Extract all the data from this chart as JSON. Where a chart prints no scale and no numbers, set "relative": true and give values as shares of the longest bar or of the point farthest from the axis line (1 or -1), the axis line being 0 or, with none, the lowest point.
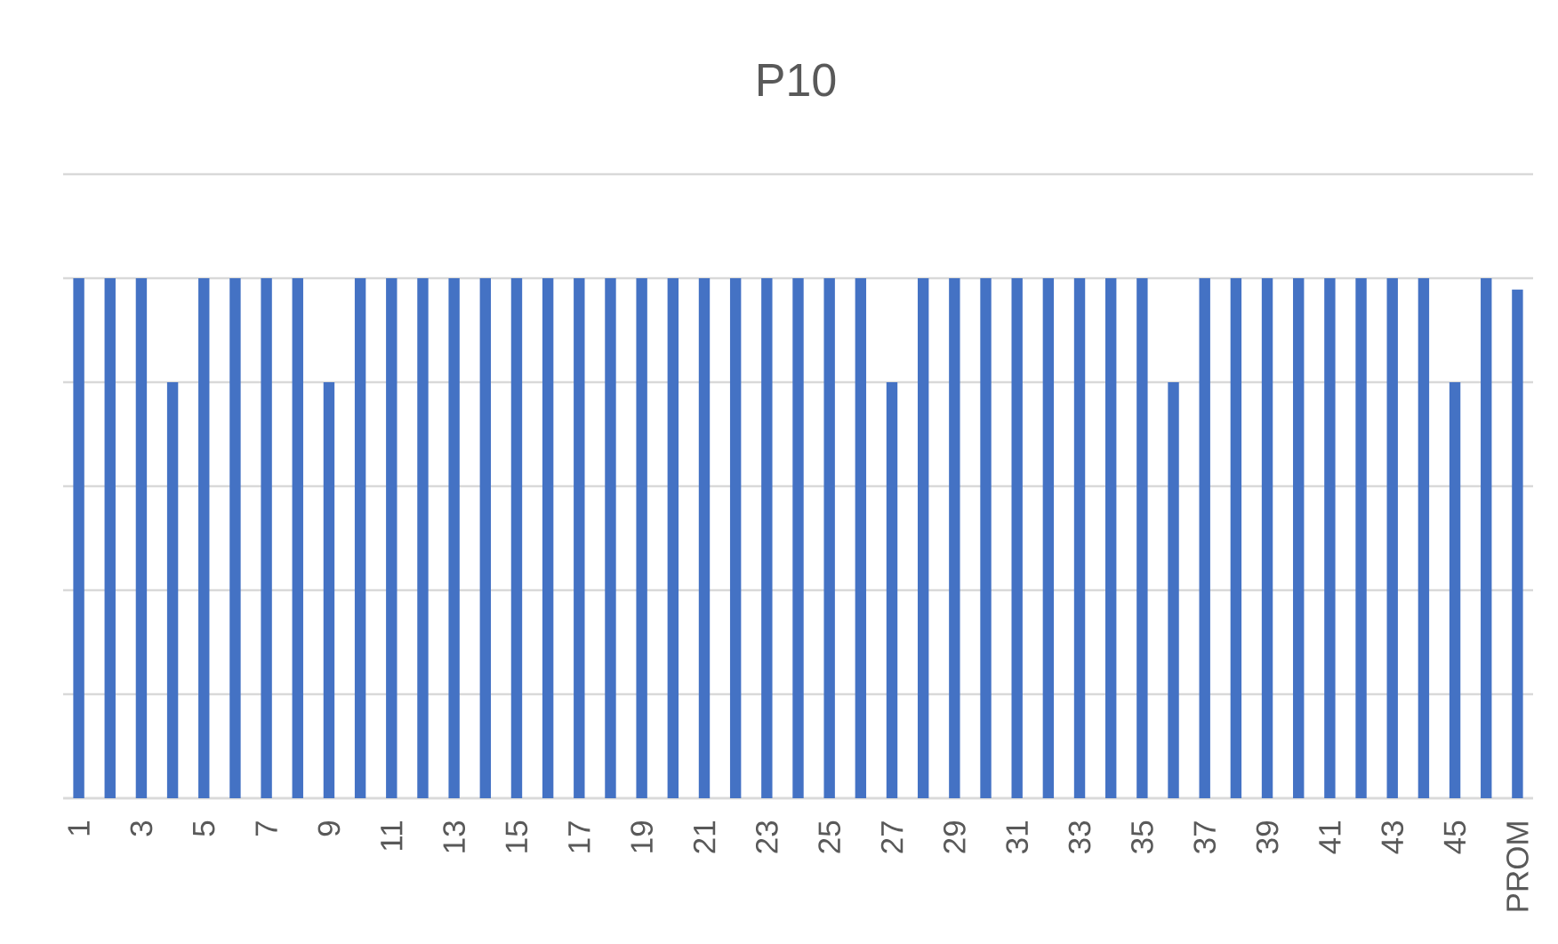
{
  "chart_data": {
    "type": "bar",
    "title": "P10",
    "categories": [
      "1",
      null,
      "3",
      null,
      "5",
      null,
      "7",
      null,
      "9",
      null,
      "11",
      null,
      "13",
      null,
      "15",
      null,
      "17",
      null,
      "19",
      null,
      "21",
      null,
      "23",
      null,
      "25",
      null,
      "27",
      null,
      "29",
      null,
      "31",
      null,
      "33",
      null,
      "35",
      null,
      "37",
      null,
      "39",
      null,
      "41",
      null,
      "43",
      null,
      "45",
      null,
      "PROM"
    ],
    "values": [
      1,
      1,
      1,
      0.8,
      1,
      1,
      1,
      1,
      0.8,
      1,
      1,
      1,
      1,
      1,
      1,
      1,
      1,
      1,
      1,
      1,
      1,
      1,
      1,
      1,
      1,
      1,
      0.8,
      1,
      1,
      1,
      1,
      1,
      1,
      1,
      1,
      0.8,
      1,
      1,
      1,
      1,
      1,
      1,
      1,
      1,
      0.8,
      1,
      0.978
    ],
    "color": "#4472c4",
    "relative": true,
    "grid": "y"
  }
}
